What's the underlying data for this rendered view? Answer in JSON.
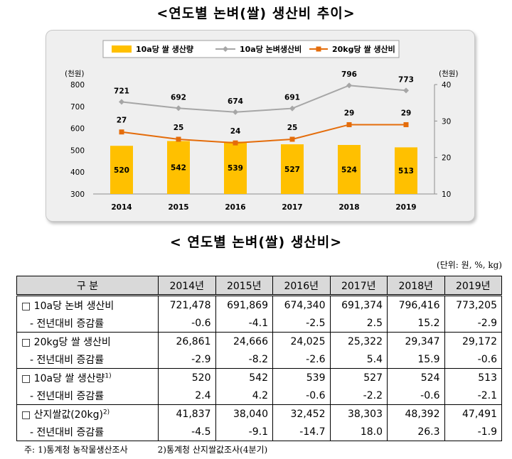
{
  "title": "<연도별 논벼(쌀) 생산비 추이>",
  "chart_data": {
    "type": "bar",
    "categories": [
      "2014",
      "2015",
      "2016",
      "2017",
      "2018",
      "2019"
    ],
    "series": [
      {
        "name": "10a당 쌀 생산량",
        "type": "bar",
        "axis": "left",
        "color": "#ffc000",
        "values": [
          520,
          542,
          539,
          527,
          524,
          513
        ]
      },
      {
        "name": "10a당 논벼생산비",
        "type": "line",
        "axis": "left",
        "color": "#a6a6a6",
        "values": [
          721,
          692,
          674,
          691,
          796,
          773
        ]
      },
      {
        "name": "20kg당 쌀 생산비",
        "type": "line",
        "axis": "right",
        "color": "#e46c0a",
        "values": [
          27,
          25,
          24,
          25,
          29,
          29
        ]
      }
    ],
    "ylabel_left": "(천원)",
    "ylabel_right": "(천원)",
    "ylim_left": [
      300,
      800
    ],
    "yticks_left": [
      "300",
      "400",
      "500",
      "600",
      "700",
      "800"
    ],
    "ylim_right": [
      10,
      40
    ],
    "yticks_right": [
      "10",
      "20",
      "30",
      "40"
    ],
    "legend_position": "top"
  },
  "table": {
    "title": "< 연도별 논벼(쌀) 생산비>",
    "unit": "(단위: 원, %, kg)",
    "header": [
      "구  분",
      "2014년",
      "2015년",
      "2016년",
      "2017년",
      "2018년",
      "2019년"
    ],
    "groups": [
      {
        "label": "□ 10a당 논벼 생산비",
        "sup": "",
        "values": [
          "721,478",
          "691,869",
          "674,340",
          "691,374",
          "796,416",
          "773,205"
        ],
        "sub_label": "- 전년대비 증감률",
        "sub_values": [
          "-0.6",
          "-4.1",
          "-2.5",
          "2.5",
          "15.2",
          "-2.9"
        ]
      },
      {
        "label": "□ 20kg당 쌀 생산비",
        "sup": "",
        "values": [
          "26,861",
          "24,666",
          "24,025",
          "25,322",
          "29,347",
          "29,172"
        ],
        "sub_label": "- 전년대비 증감률",
        "sub_values": [
          "-2.9",
          "-8.2",
          "-2.6",
          "5.4",
          "15.9",
          "-0.6"
        ]
      },
      {
        "label": "□ 10a당 쌀 생산량",
        "sup": "1)",
        "values": [
          "520",
          "542",
          "539",
          "527",
          "524",
          "513"
        ],
        "sub_label": "- 전년대비 증감률",
        "sub_values": [
          "2.4",
          "4.2",
          "-0.6",
          "-2.2",
          "-0.6",
          "-2.1"
        ]
      },
      {
        "label": "□ 산지쌀값(20kg)",
        "sup": "2)",
        "values": [
          "41,837",
          "38,040",
          "32,452",
          "38,303",
          "48,392",
          "47,491"
        ],
        "sub_label": "- 전년대비 증감률",
        "sub_values": [
          "-4.5",
          "-9.1",
          "-14.7",
          "18.0",
          "26.3",
          "-1.9"
        ]
      }
    ],
    "note_prefix": "주:",
    "notes": [
      "1)통계청 농작물생산조사",
      "2)통계청 산지쌀값조사(4분기)"
    ]
  }
}
